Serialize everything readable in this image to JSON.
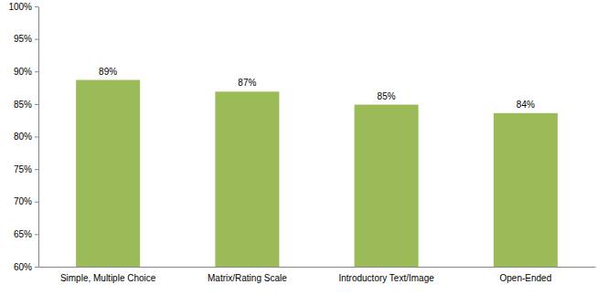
{
  "chart_data": {
    "type": "bar",
    "categories": [
      "Simple, Multiple Choice",
      "Matrix/Rating Scale",
      "Introductory Text/Image",
      "Open-Ended"
    ],
    "values": [
      88.7,
      86.9,
      84.9,
      83.6
    ],
    "value_labels": [
      "89%",
      "87%",
      "85%",
      "84%"
    ],
    "color": "#9bbb59",
    "ylim": [
      60,
      100
    ],
    "yticks": [
      {
        "value": 60,
        "label": "60%"
      },
      {
        "value": 65,
        "label": "65%"
      },
      {
        "value": 70,
        "label": "70%"
      },
      {
        "value": 75,
        "label": "75%"
      },
      {
        "value": 80,
        "label": "80%"
      },
      {
        "value": 85,
        "label": "85%"
      },
      {
        "value": 90,
        "label": "90%"
      },
      {
        "value": 95,
        "label": "95%"
      },
      {
        "value": 100,
        "label": "100%"
      }
    ],
    "grid": false,
    "data_labels": true
  }
}
